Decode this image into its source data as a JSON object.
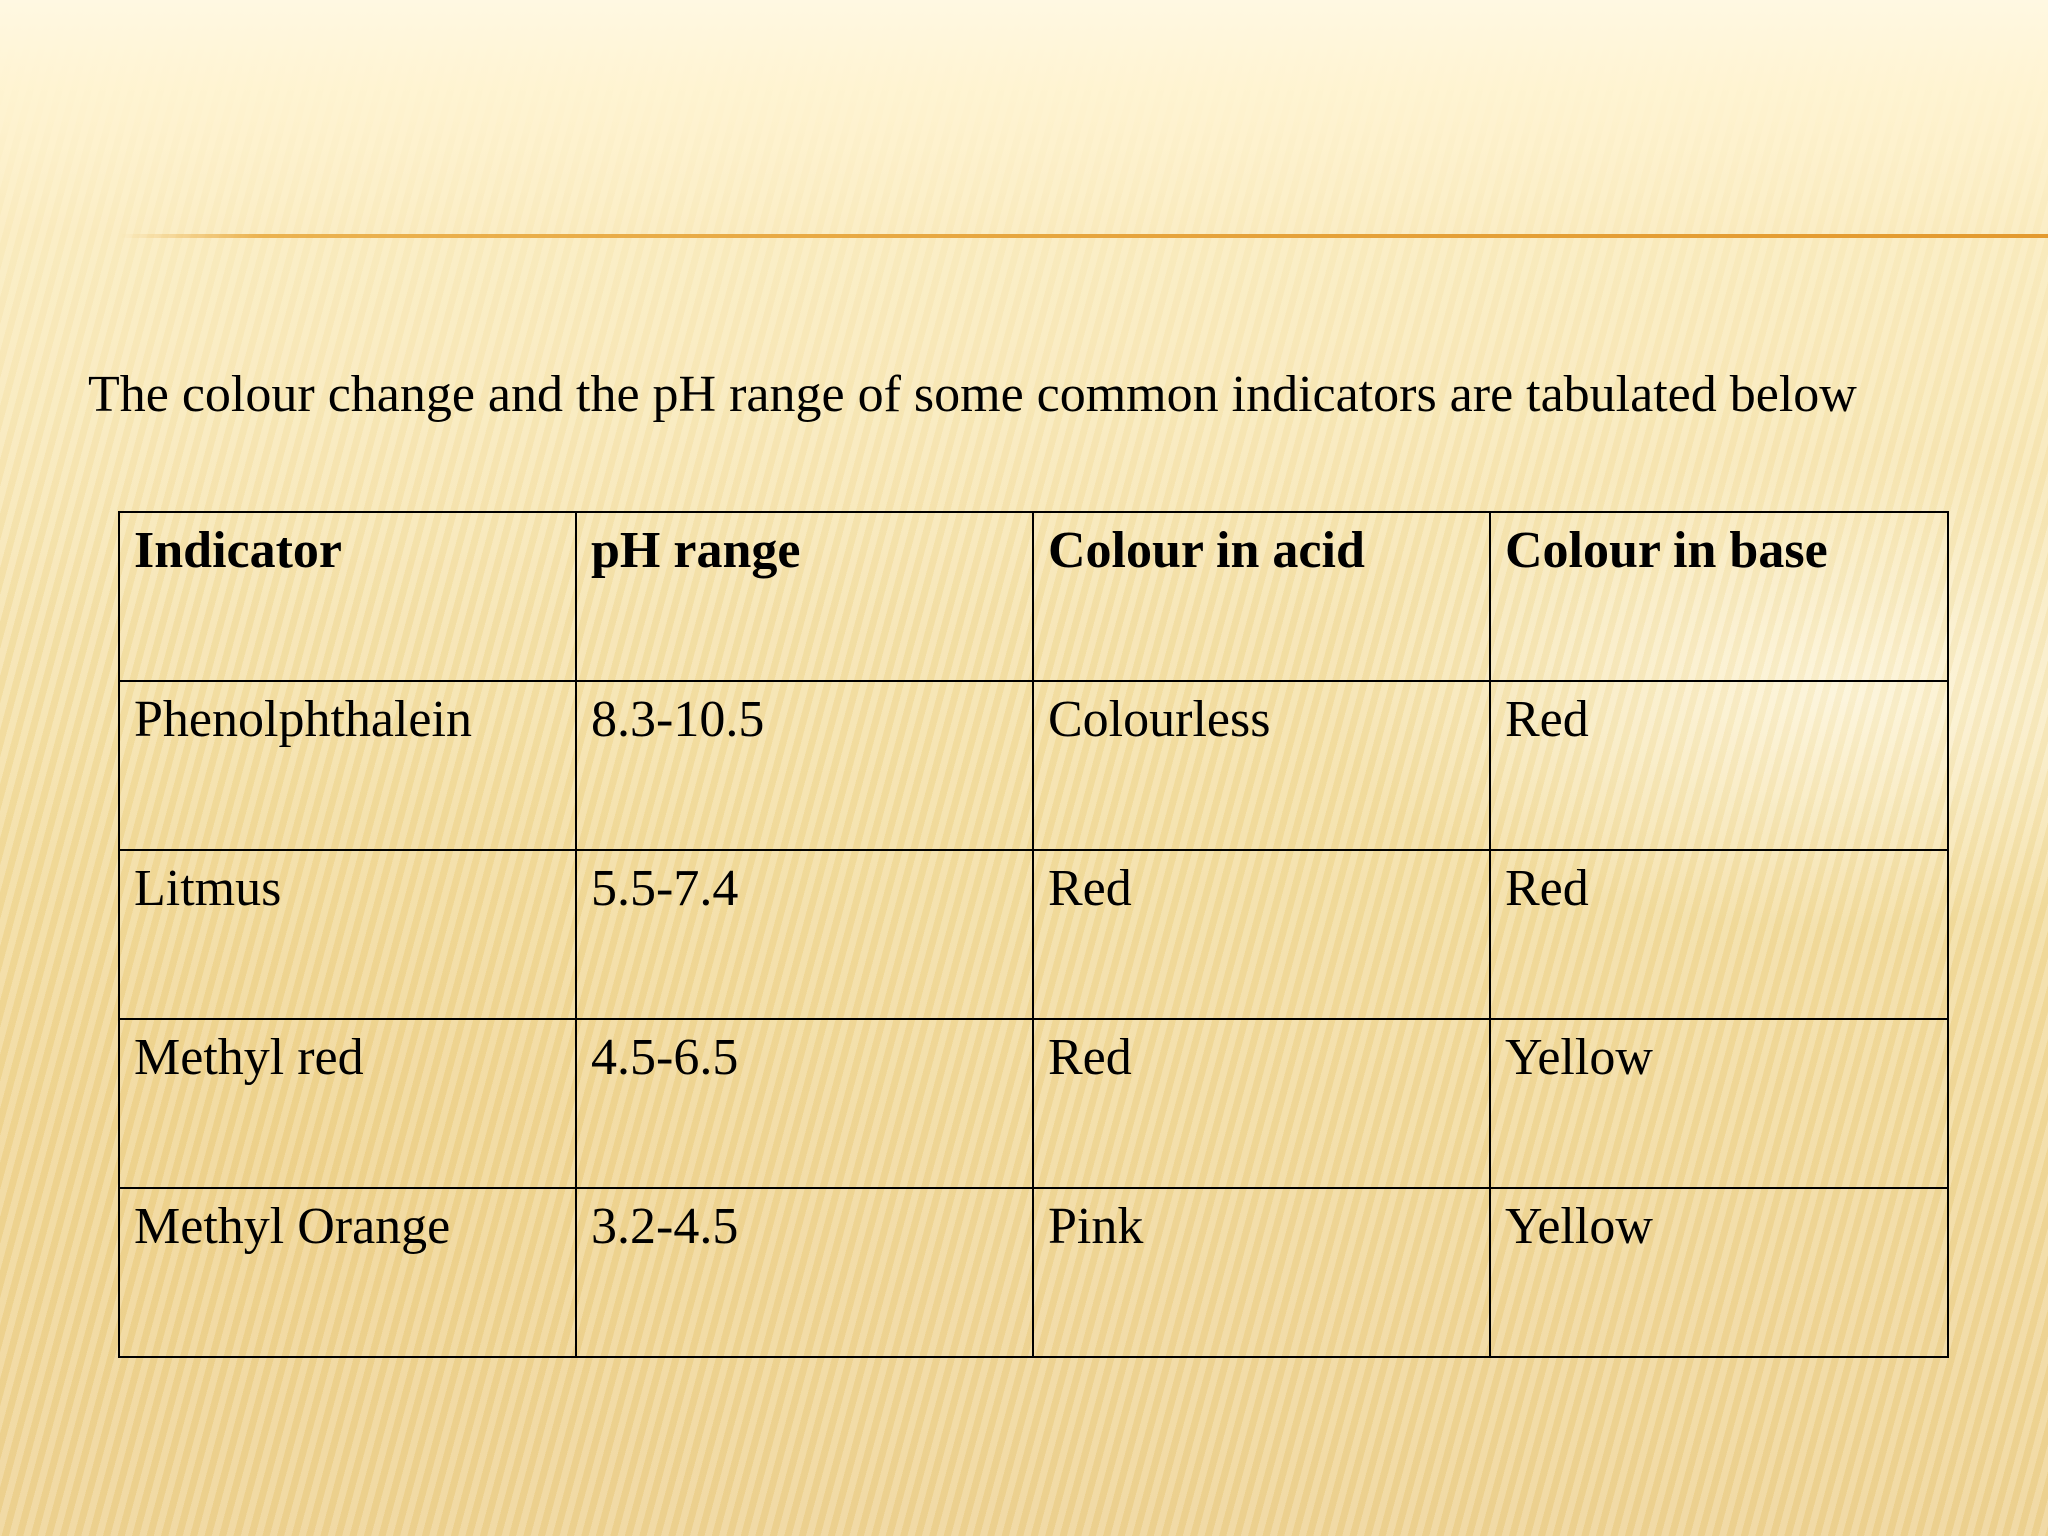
{
  "intro_text": "The colour change and the pH range of some common indicators are tabulated below",
  "table": {
    "headers": [
      "Indicator",
      "pH range",
      "Colour in acid",
      "Colour in base"
    ],
    "rows": [
      [
        "Phenolphthalein",
        "8.3-10.5",
        "Colourless",
        "Red"
      ],
      [
        "Litmus",
        "5.5-7.4",
        "Red",
        "Red"
      ],
      [
        "Methyl red",
        "4.5-6.5",
        "Red",
        "Yellow"
      ],
      [
        "Methyl Orange",
        "3.2-4.5",
        "Pink",
        "Yellow"
      ]
    ]
  },
  "colors": {
    "accent_line": "#e5a23a",
    "background": "#f6e3a8",
    "text": "#000000"
  }
}
